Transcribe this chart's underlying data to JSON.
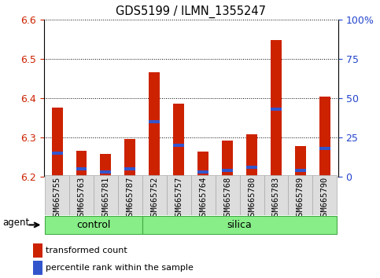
{
  "title": "GDS5199 / ILMN_1355247",
  "samples": [
    "GSM665755",
    "GSM665763",
    "GSM665781",
    "GSM665787",
    "GSM665752",
    "GSM665757",
    "GSM665764",
    "GSM665768",
    "GSM665780",
    "GSM665783",
    "GSM665789",
    "GSM665790"
  ],
  "transformed_count": [
    6.375,
    6.265,
    6.258,
    6.295,
    6.465,
    6.385,
    6.264,
    6.292,
    6.308,
    6.548,
    6.277,
    6.403
  ],
  "percentile_rank": [
    15,
    5,
    3,
    5,
    35,
    20,
    3,
    4,
    6,
    43,
    4,
    18
  ],
  "ylim_left": [
    6.2,
    6.6
  ],
  "ylim_right": [
    0,
    100
  ],
  "yticks_left": [
    6.2,
    6.3,
    6.4,
    6.5,
    6.6
  ],
  "yticks_right": [
    0,
    25,
    50,
    75,
    100
  ],
  "ytick_labels_right": [
    "0",
    "25",
    "50",
    "75",
    "100%"
  ],
  "bar_color_red": "#cc2200",
  "bar_color_blue": "#3355cc",
  "bg_color": "#ffffff",
  "tick_label_color_left": "#cc2200",
  "tick_label_color_right": "#2244cc",
  "control_label": "control",
  "silica_label": "silica",
  "agent_label": "agent",
  "legend_red": "transformed count",
  "legend_blue": "percentile rank within the sample",
  "bar_width": 0.45,
  "base_value": 6.2,
  "group_fill": "#88ee88",
  "group_edge": "#44aa44",
  "sample_box_fill": "#dddddd",
  "sample_box_edge": "#aaaaaa"
}
